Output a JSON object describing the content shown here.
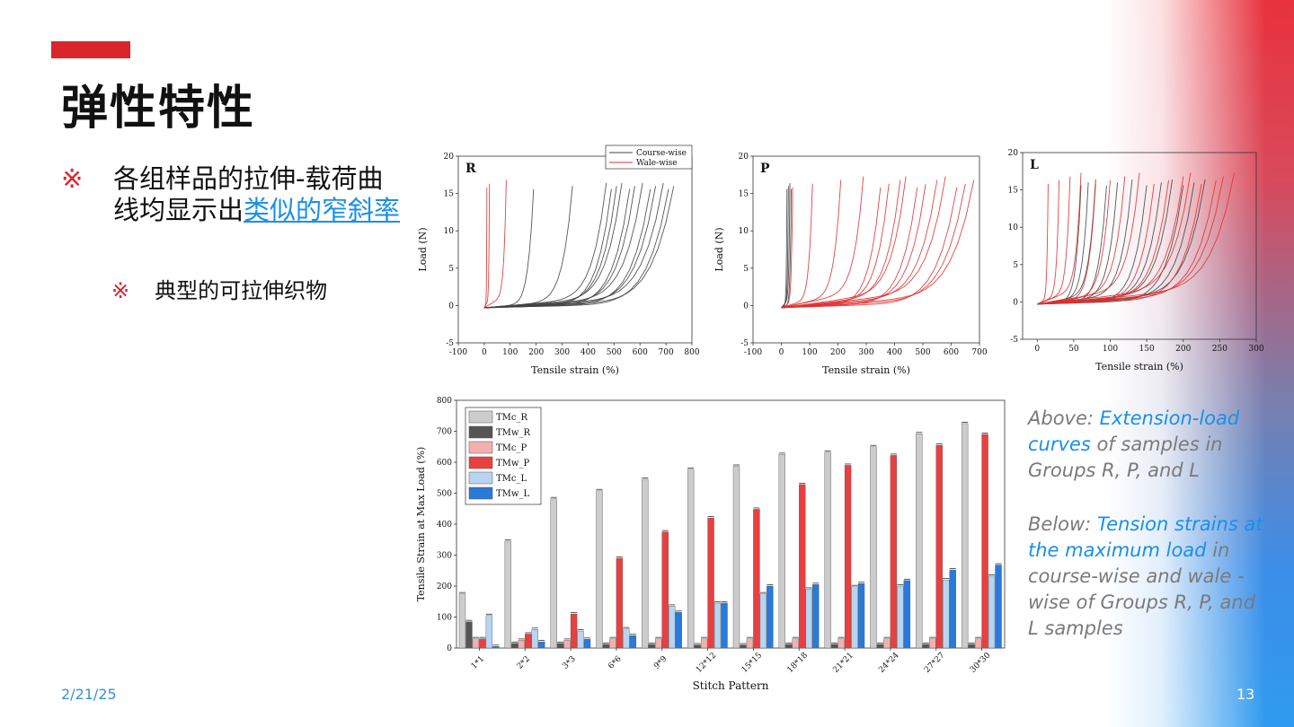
{
  "slide": {
    "title": "弹性特性",
    "bullet1_mark": "※",
    "bullet1_text": "各组样品的拉伸-载荷曲线均显示出",
    "bullet1_link": "类似的窄斜率",
    "bullet2_mark": "※",
    "bullet2_text": "典型的可拉伸织物",
    "date": "2/21/25",
    "page_number": "13",
    "caption_above_prefix": "Above: ",
    "caption_above_hl": "Extension-load curves",
    "caption_above_rest": " of samples in Groups R, P, and L",
    "caption_below_prefix": "Below: ",
    "caption_below_hl": "Tension strains at the maximum load",
    "caption_below_rest": " in course-wise and wale -wise of Groups R, P, and L samples",
    "colors": {
      "accent_red": "#d8262c",
      "link_blue": "#1a8fe8",
      "caption_grey": "#7a7a7a"
    }
  },
  "chart_data": [
    {
      "type": "line",
      "panel_label": "R",
      "xlabel": "Tensile strain (%)",
      "ylabel": "Load (N)",
      "xlim": [
        -100,
        800
      ],
      "ylim": [
        -5,
        20
      ],
      "xticks": [
        -100,
        0,
        100,
        200,
        300,
        400,
        500,
        600,
        700,
        800
      ],
      "yticks": [
        -5,
        0,
        5,
        10,
        15,
        20
      ],
      "legend": [
        "Course-wise",
        "Wale-wise"
      ],
      "series_colors": {
        "Course-wise": "#444444",
        "Wale-wise": "#e03030"
      },
      "course_end_strains": [
        190,
        340,
        470,
        490,
        510,
        530,
        560,
        580,
        610,
        640,
        660,
        690,
        710,
        730
      ],
      "wale_end_strains": [
        10,
        20,
        85
      ]
    },
    {
      "type": "line",
      "panel_label": "P",
      "xlabel": "Tensile strain (%)",
      "ylabel": "Load (N)",
      "xlim": [
        -100,
        700
      ],
      "ylim": [
        -5,
        20
      ],
      "xticks": [
        -100,
        0,
        100,
        200,
        300,
        400,
        500,
        600,
        700
      ],
      "yticks": [
        -5,
        0,
        5,
        10,
        15,
        20
      ],
      "course_end_strains": [
        20,
        25,
        30,
        35
      ],
      "wale_end_strains": [
        40,
        110,
        210,
        290,
        350,
        380,
        420,
        440,
        480,
        510,
        550,
        580,
        620,
        650,
        680
      ]
    },
    {
      "type": "line",
      "panel_label": "L",
      "xlabel": "Tensile strain (%)",
      "xlim": [
        -20,
        300
      ],
      "ylim": [
        -5,
        20
      ],
      "xticks": [
        0,
        50,
        100,
        150,
        200,
        250,
        300
      ],
      "yticks": [
        -5,
        0,
        5,
        10,
        15,
        20
      ],
      "course_end_strains": [
        60,
        70,
        80,
        95,
        110,
        130,
        150,
        170,
        185,
        200,
        215,
        230
      ],
      "wale_end_strains": [
        15,
        30,
        45,
        60,
        80,
        100,
        120,
        140,
        160,
        180,
        200,
        210,
        225,
        245,
        255,
        270
      ]
    },
    {
      "type": "bar",
      "xlabel": "Stitch Pattern",
      "ylabel": "Tensile Strain at Max Load (%)",
      "ylim": [
        0,
        800
      ],
      "yticks": [
        0,
        100,
        200,
        300,
        400,
        500,
        600,
        700,
        800
      ],
      "legend_position": "top-left",
      "categories": [
        "1*1",
        "2*2",
        "3*3",
        "6*6",
        "9*9",
        "12*12",
        "15*15",
        "18*18",
        "21*21",
        "24*24",
        "27*27",
        "30*30"
      ],
      "series": [
        {
          "name": "TMc_R",
          "color": "#cccccc",
          "values": [
            175,
            345,
            482,
            508,
            545,
            577,
            587,
            625,
            632,
            650,
            692,
            725
          ]
        },
        {
          "name": "TMw_R",
          "color": "#555555",
          "values": [
            85,
            15,
            15,
            12,
            12,
            10,
            10,
            12,
            12,
            12,
            12,
            12
          ]
        },
        {
          "name": "TMc_P",
          "color": "#f4b0b0",
          "values": [
            30,
            25,
            25,
            30,
            30,
            30,
            30,
            30,
            30,
            30,
            30,
            30
          ]
        },
        {
          "name": "TMw_P",
          "color": "#e84040",
          "values": [
            30,
            45,
            110,
            290,
            375,
            420,
            448,
            528,
            590,
            622,
            655,
            690
          ]
        },
        {
          "name": "TMc_L",
          "color": "#b8d4f0",
          "values": [
            105,
            60,
            55,
            62,
            135,
            145,
            175,
            190,
            198,
            200,
            220,
            232
          ]
        },
        {
          "name": "TMw_L",
          "color": "#2a7ad8",
          "values": [
            5,
            20,
            28,
            40,
            115,
            145,
            200,
            205,
            208,
            218,
            252,
            268
          ]
        }
      ]
    }
  ]
}
